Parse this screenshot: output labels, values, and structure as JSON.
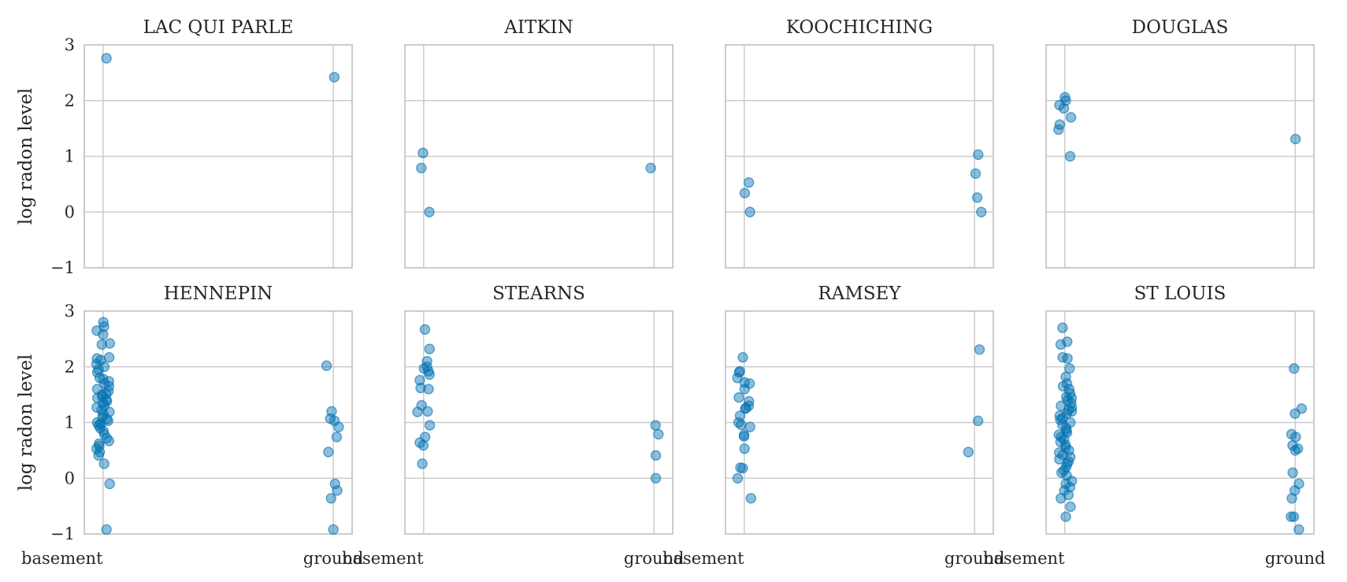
{
  "chart_data": {
    "type": "scatter",
    "layout": "2x4 facet grid",
    "ylabel": "log radon level",
    "ylim": [
      -1,
      3
    ],
    "yticks": [
      -1,
      0,
      1,
      2,
      3
    ],
    "x_categories": [
      "basement",
      "ground"
    ],
    "grid": true,
    "point_color": "#0072b2",
    "panels": [
      {
        "title": "LAC QUI PARLE",
        "basement": [
          2.76
        ],
        "ground": [
          2.42
        ]
      },
      {
        "title": "AITKIN",
        "basement": [
          1.06,
          0.79,
          0.0
        ],
        "ground": [
          0.79
        ]
      },
      {
        "title": "KOOCHICHING",
        "basement": [
          0.53,
          0.34,
          0.0
        ],
        "ground": [
          1.03,
          0.69,
          0.26,
          0.0
        ]
      },
      {
        "title": "DOUGLAS",
        "basement": [
          2.06,
          2.0,
          1.92,
          1.86,
          1.7,
          1.57,
          1.48,
          1.0
        ],
        "ground": [
          1.31
        ]
      },
      {
        "title": "HENNEPIN",
        "basement": [
          2.8,
          2.72,
          2.65,
          2.58,
          2.42,
          2.4,
          2.17,
          2.15,
          2.12,
          2.05,
          2.0,
          1.95,
          1.9,
          1.8,
          1.78,
          1.74,
          1.7,
          1.65,
          1.6,
          1.56,
          1.52,
          1.5,
          1.47,
          1.44,
          1.41,
          1.38,
          1.35,
          1.3,
          1.27,
          1.22,
          1.19,
          1.15,
          1.1,
          1.06,
          1.03,
          1.0,
          0.98,
          0.95,
          0.9,
          0.85,
          0.79,
          0.72,
          0.67,
          0.62,
          0.58,
          0.53,
          0.47,
          0.41,
          0.26,
          -0.1,
          -0.92
        ],
        "ground": [
          2.02,
          1.2,
          1.07,
          1.03,
          0.92,
          0.74,
          0.47,
          -0.1,
          -0.22,
          -0.36,
          -0.92
        ]
      },
      {
        "title": "STEARNS",
        "basement": [
          2.67,
          2.32,
          2.1,
          2.0,
          1.97,
          1.92,
          1.86,
          1.76,
          1.62,
          1.6,
          1.31,
          1.2,
          1.19,
          0.95,
          0.74,
          0.64,
          0.59,
          0.26
        ],
        "ground": [
          0.95,
          0.79,
          0.41,
          0.0
        ]
      },
      {
        "title": "RAMSEY",
        "basement": [
          2.17,
          1.92,
          1.9,
          1.8,
          1.72,
          1.7,
          1.6,
          1.45,
          1.38,
          1.3,
          1.26,
          1.25,
          1.12,
          1.0,
          0.96,
          0.92,
          0.78,
          0.75,
          0.53,
          0.19,
          0.18,
          0.0,
          -0.36
        ],
        "ground": [
          2.31,
          1.03,
          0.47
        ]
      },
      {
        "title": "ST LOUIS",
        "basement": [
          2.7,
          2.45,
          2.4,
          2.17,
          2.15,
          1.97,
          1.82,
          1.7,
          1.65,
          1.6,
          1.52,
          1.46,
          1.44,
          1.4,
          1.35,
          1.3,
          1.27,
          1.23,
          1.2,
          1.16,
          1.12,
          1.08,
          1.05,
          1.0,
          0.96,
          0.9,
          0.86,
          0.82,
          0.78,
          0.74,
          0.7,
          0.65,
          0.6,
          0.55,
          0.5,
          0.46,
          0.42,
          0.38,
          0.34,
          0.3,
          0.26,
          0.2,
          0.14,
          0.1,
          0.05,
          -0.05,
          -0.1,
          -0.16,
          -0.22,
          -0.3,
          -0.36,
          -0.51,
          -0.69
        ],
        "ground": [
          1.97,
          1.25,
          1.16,
          0.79,
          0.74,
          0.59,
          0.53,
          0.5,
          0.1,
          -0.1,
          -0.22,
          -0.36,
          -0.69,
          -0.69,
          -0.92
        ]
      }
    ]
  }
}
